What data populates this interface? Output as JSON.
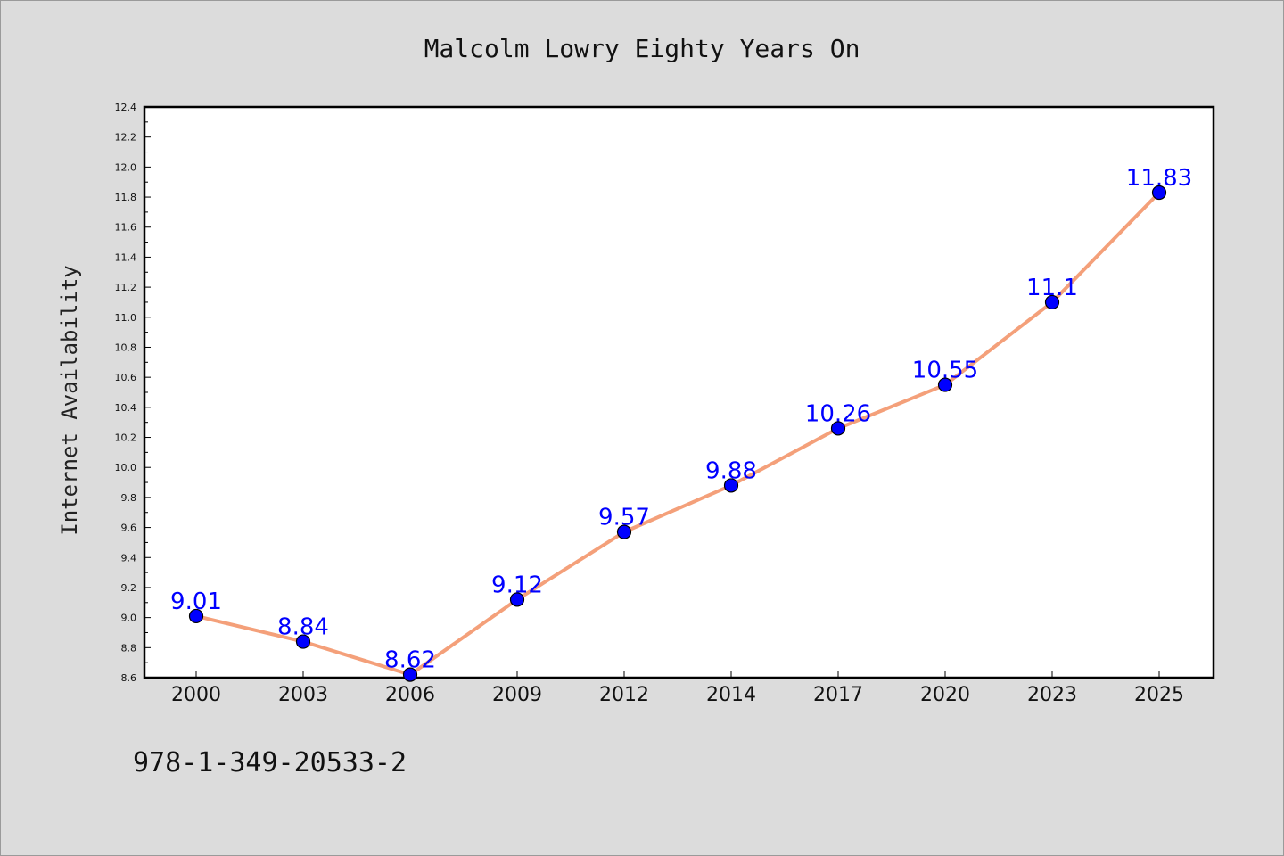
{
  "chart_data": {
    "type": "line",
    "title": "Malcolm Lowry Eighty Years On",
    "ylabel": "Internet Availability",
    "xlabel": "",
    "categories": [
      "2000",
      "2003",
      "2006",
      "2009",
      "2012",
      "2014",
      "2017",
      "2020",
      "2023",
      "2025"
    ],
    "series": [
      {
        "values": [
          9.01,
          8.84,
          8.62,
          9.12,
          9.57,
          9.88,
          10.26,
          10.55,
          11.1,
          11.83
        ],
        "labels": [
          "9.01",
          "8.84",
          "8.62",
          "9.12",
          "9.57",
          "9.88",
          "10.26",
          "10.55",
          "11.1",
          "11.83"
        ],
        "line_color": "#f4a07a",
        "marker_color": "#0000ff"
      }
    ],
    "ylim": [
      8.6,
      12.4
    ],
    "yticks": [
      "8.6",
      "8.8",
      "9.0",
      "9.2",
      "9.4",
      "9.6",
      "9.8",
      "10.0",
      "10.2",
      "10.4",
      "10.6",
      "10.8",
      "11.0",
      "11.2",
      "11.4",
      "11.6",
      "11.8",
      "12.0",
      "12.2",
      "12.4"
    ],
    "grid": false,
    "legend": "none"
  },
  "footer": {
    "isbn": "978-1-349-20533-2"
  }
}
